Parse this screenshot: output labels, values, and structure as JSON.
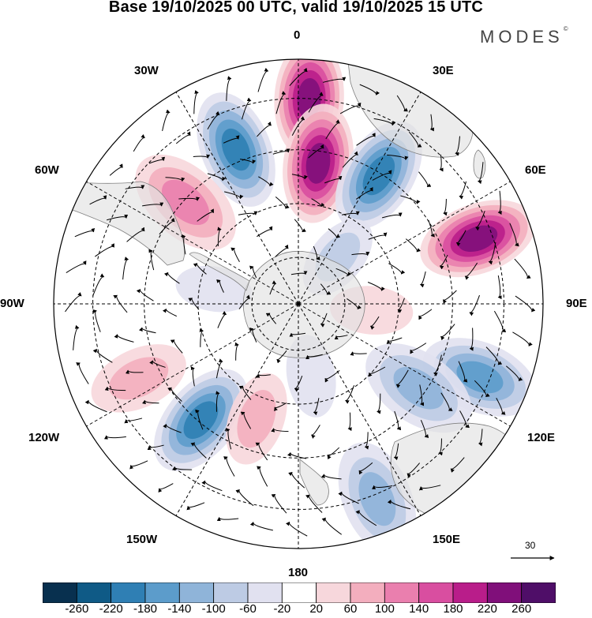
{
  "title": "Base 19/10/2025 00 UTC, valid 19/10/2025 15 UTC",
  "brand": {
    "name": "MODES",
    "mark": "©"
  },
  "longitude_labels": [
    {
      "id": "lon-0",
      "text": "0"
    },
    {
      "id": "lon-30e",
      "text": "30E"
    },
    {
      "id": "lon-60e",
      "text": "60E"
    },
    {
      "id": "lon-90e",
      "text": "90E"
    },
    {
      "id": "lon-120e",
      "text": "120E"
    },
    {
      "id": "lon-150e",
      "text": "150E"
    },
    {
      "id": "lon-180",
      "text": "180"
    },
    {
      "id": "lon-150w",
      "text": "150W"
    },
    {
      "id": "lon-120w",
      "text": "120W"
    },
    {
      "id": "lon-90w",
      "text": "90W"
    },
    {
      "id": "lon-60w",
      "text": "60W"
    },
    {
      "id": "lon-30w",
      "text": "30W"
    }
  ],
  "reference_vector": {
    "value": "30"
  },
  "colorbar": {
    "labels": [
      "-260",
      "-220",
      "-180",
      "-140",
      "-100",
      "-60",
      "-20",
      "20",
      "60",
      "100",
      "140",
      "180",
      "220",
      "260"
    ],
    "colors": [
      "#08304f",
      "#0f5a86",
      "#2f7fb4",
      "#5c9ccb",
      "#8fb4d9",
      "#bdcbe4",
      "#e1e1f0",
      "#ffffff",
      "#f7d7dc",
      "#f3aebe",
      "#ea7fae",
      "#d94ea0",
      "#b91d8a",
      "#800f7a",
      "#4f0e68"
    ]
  },
  "anomalies": [
    {
      "lon": 3,
      "r": 0.84,
      "value": 240
    },
    {
      "lon": 8,
      "r": 0.58,
      "value": 220
    },
    {
      "lon": 32,
      "r": 0.62,
      "value": -190
    },
    {
      "lon": -22,
      "r": 0.68,
      "value": -200
    },
    {
      "lon": -48,
      "r": 0.62,
      "value": 120
    },
    {
      "lon": 70,
      "r": 0.78,
      "value": 220
    },
    {
      "lon": 112,
      "r": 0.8,
      "value": -150
    },
    {
      "lon": 125,
      "r": 0.6,
      "value": -130
    },
    {
      "lon": 158,
      "r": 0.86,
      "value": -110
    },
    {
      "lon": -140,
      "r": 0.62,
      "value": -200
    },
    {
      "lon": -115,
      "r": 0.72,
      "value": 80
    },
    {
      "lon": -160,
      "r": 0.5,
      "value": 70
    },
    {
      "lon": 40,
      "r": 0.25,
      "value": -60
    },
    {
      "lon": 95,
      "r": 0.3,
      "value": 50
    },
    {
      "lon": -80,
      "r": 0.35,
      "value": -40
    },
    {
      "lon": 170,
      "r": 0.3,
      "value": -50
    }
  ]
}
